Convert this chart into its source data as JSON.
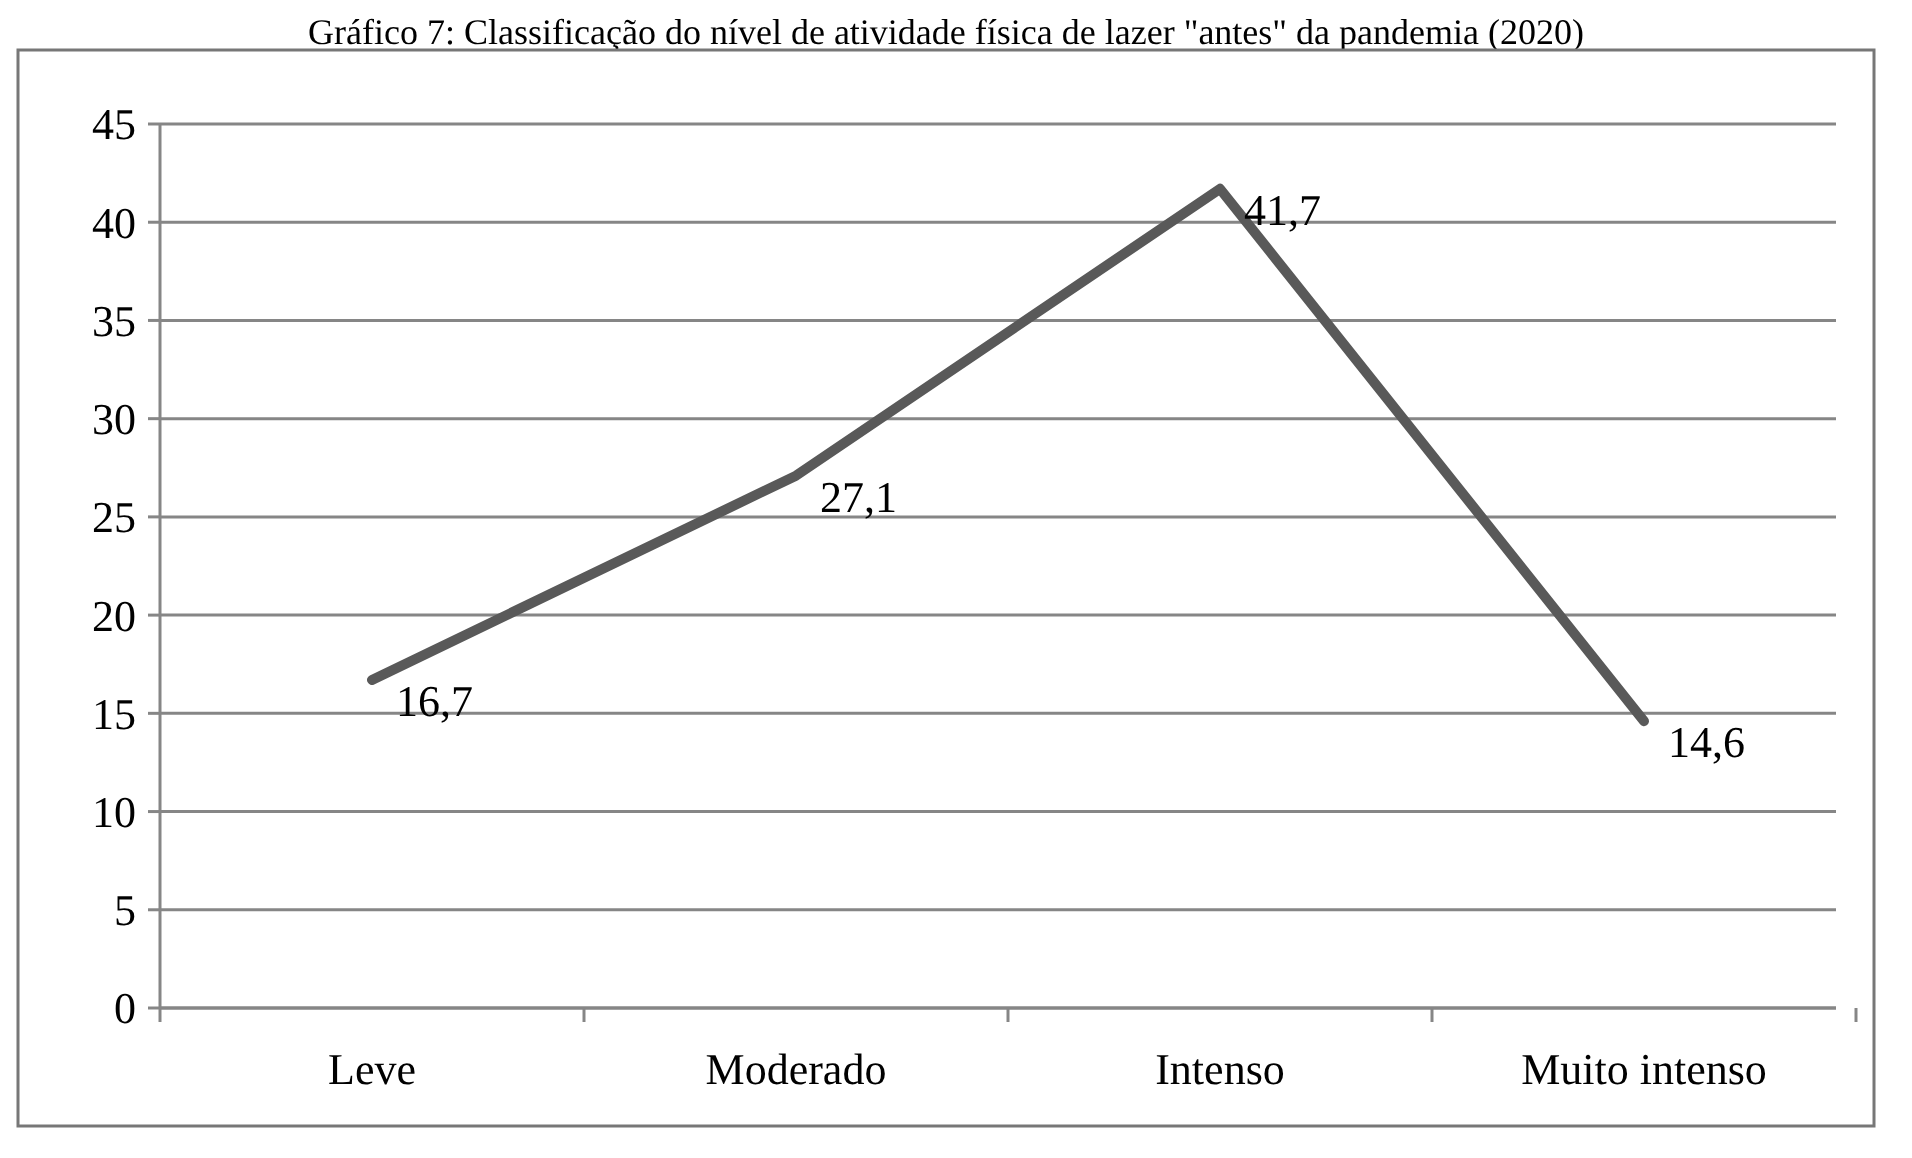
{
  "chart_data": {
    "type": "line",
    "title": "Gráfico 7: Classificação do nível de atividade física de lazer \"antes\" da pandemia (2020)",
    "categories": [
      "Leve",
      "Moderado",
      "Intenso",
      "Muito intenso"
    ],
    "series": [
      {
        "color": "#595959",
        "values": [
          16.7,
          27.1,
          41.7,
          14.6
        ],
        "value_labels": [
          "16,7",
          "27,1",
          "41,7",
          "14,6"
        ]
      }
    ],
    "ylim": [
      0,
      45
    ],
    "yticks": [
      0,
      5,
      10,
      15,
      20,
      25,
      30,
      35,
      40,
      45
    ],
    "grid": "y",
    "marker": "none",
    "line_style": "solid"
  }
}
